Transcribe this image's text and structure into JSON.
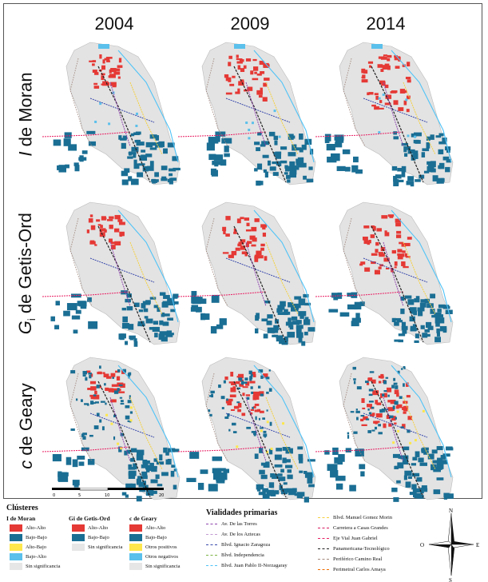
{
  "years": [
    "2004",
    "2009",
    "2014"
  ],
  "rows": [
    {
      "id": "moran",
      "label_symbol": "I",
      "label_sub": "",
      "label_text": " de Moran"
    },
    {
      "id": "getis",
      "label_symbol": "G",
      "label_sub": "i",
      "label_text": " de Getis-Ord"
    },
    {
      "id": "geary",
      "label_symbol": "c",
      "label_sub": "",
      "label_text": " de Geary"
    }
  ],
  "scale_bar": {
    "ticks": [
      "0",
      "5",
      "10",
      "20"
    ]
  },
  "legend": {
    "clusters_title": "Clústeres",
    "moran": {
      "title": "I de Moran",
      "items": [
        {
          "label": "Alto-Alto",
          "color": "#e53935"
        },
        {
          "label": "Bajo-Bajo",
          "color": "#1a6e94"
        },
        {
          "label": "Alto-Bajo",
          "color": "#fde74c"
        },
        {
          "label": "Bajo-Alto",
          "color": "#5bc0eb"
        },
        {
          "label": "Sin significancia",
          "color": "#e6e6e6"
        }
      ]
    },
    "getis": {
      "title": "Gi de Getis-Ord",
      "items": [
        {
          "label": "Alto-Alto",
          "color": "#e53935"
        },
        {
          "label": "Bajo-Bajo",
          "color": "#1a6e94"
        },
        {
          "label": "Sin significancia",
          "color": "#e6e6e6"
        }
      ]
    },
    "geary": {
      "title": "c de Geary",
      "items": [
        {
          "label": "Alto-Alto",
          "color": "#e53935"
        },
        {
          "label": "Bajo-Bajo",
          "color": "#1a6e94"
        },
        {
          "label": "Otros positivos",
          "color": "#fde74c"
        },
        {
          "label": "Otros negativos",
          "color": "#5bc0eb"
        },
        {
          "label": "Sin significancia",
          "color": "#e6e6e6"
        }
      ]
    },
    "roads_title": "Vialidades primarias",
    "roads_left": [
      {
        "label": "Av. De las Torres",
        "color": "#8e44ad"
      },
      {
        "label": "Av. De los Aztecas",
        "color": "#c39bd3"
      },
      {
        "label": "Blvd. Ignacio Zaragoza",
        "color": "#3949ab"
      },
      {
        "label": "Blvd. Independencia",
        "color": "#7cb342"
      },
      {
        "label": "Blvd. Juan Pablo II-Norzagaray",
        "color": "#4fc3f7"
      }
    ],
    "roads_right": [
      {
        "label": "Blvd. Manuel Gomez Morin",
        "color": "#f4d03f"
      },
      {
        "label": "Carretera a Casas Grandes",
        "color": "#d81b60"
      },
      {
        "label": "Eje Vial Juan Gabriel",
        "color": "#e91e63"
      },
      {
        "label": "Panamericana-Tecnológico",
        "color": "#222222"
      },
      {
        "label": "Periférico Camino Real",
        "color": "#a1887f"
      },
      {
        "label": "Perimetral Carlos Amaya",
        "color": "#ef6c00"
      }
    ]
  },
  "compass": {
    "n": "N",
    "s": "S",
    "e": "E",
    "o": "O"
  }
}
